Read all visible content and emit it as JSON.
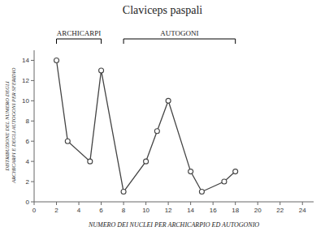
{
  "chart_data": {
    "type": "line",
    "title": "Claviceps paspali",
    "xlabel": "NUMERO DEI NUCLEI PER ARCHICARPIO ED AUTOGONIO",
    "ylabel": "DISTRIBUZIONE DEL NUMERO DEGLI ARCHICARPI E DEGLI AUTOGONI PER SFERIDIO",
    "x": [
      2,
      3,
      5,
      6,
      8,
      10,
      11,
      12,
      14,
      15,
      17,
      18
    ],
    "series": [
      {
        "color": "#444444",
        "marker": "open-circle",
        "values": [
          14,
          6,
          4,
          13,
          1,
          4,
          7,
          10,
          3,
          1,
          2,
          3
        ]
      }
    ],
    "xlim": [
      0,
      25
    ],
    "ylim": [
      0,
      15
    ],
    "xticks": [
      0,
      2,
      4,
      6,
      8,
      10,
      12,
      14,
      16,
      18,
      20,
      22,
      24
    ],
    "yticks": [
      0,
      2,
      4,
      6,
      8,
      10,
      12,
      14
    ],
    "grid": false,
    "annotations": [
      {
        "text": "ARCHICARPI",
        "x": [
          2,
          6
        ]
      },
      {
        "text": "AUTOGONI",
        "x": [
          8,
          18
        ]
      }
    ]
  }
}
